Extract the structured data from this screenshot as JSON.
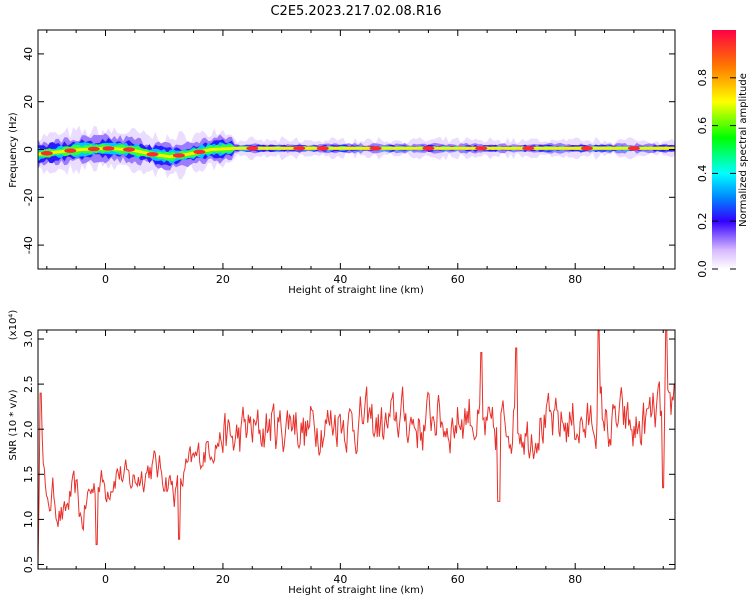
{
  "title": "C2E5.2023.217.02.08.R16",
  "chart_data": [
    {
      "type": "heatmap",
      "xlabel": "Height of straight line (km)",
      "ylabel": "Frequency (Hz)",
      "xlim": [
        -11.5,
        97
      ],
      "ylim": [
        -50,
        50
      ],
      "x_ticks": [
        0,
        20,
        40,
        60,
        80
      ],
      "y_ticks": [
        -40,
        -20,
        0,
        20,
        40
      ],
      "colorbar": {
        "label": "Normalized spectral amplitude",
        "range": [
          0,
          1
        ],
        "ticks": [
          "0.0",
          "0.2",
          "0.4",
          "0.6",
          "0.8"
        ]
      },
      "band_center_hz": [
        [
          -11.5,
          -2
        ],
        [
          -8,
          -1
        ],
        [
          -4,
          0
        ],
        [
          0,
          0.5
        ],
        [
          4,
          0
        ],
        [
          8,
          -2
        ],
        [
          11,
          -3
        ],
        [
          14,
          -2
        ],
        [
          18,
          0
        ],
        [
          22,
          0.5
        ],
        [
          40,
          0.5
        ],
        [
          97,
          0.5
        ]
      ],
      "peaks": [
        [
          -10,
          0.9
        ],
        [
          -6,
          0.9
        ],
        [
          -2,
          0.9
        ],
        [
          0.5,
          0.9
        ],
        [
          4,
          0.85
        ],
        [
          8,
          0.8
        ],
        [
          12.5,
          0.85
        ],
        [
          16,
          0.85
        ],
        [
          25,
          0.9
        ],
        [
          33,
          0.9
        ],
        [
          37,
          0.9
        ],
        [
          46,
          0.95
        ],
        [
          55,
          0.95
        ],
        [
          64,
          0.9
        ],
        [
          72,
          0.9
        ],
        [
          82,
          0.9
        ],
        [
          90,
          0.9
        ]
      ]
    },
    {
      "type": "line",
      "xlabel": "Height of straight line (km)",
      "ylabel": "SNR (10 * v/v)",
      "y_exponent_label": "(x10⁴)",
      "xlim": [
        -11.5,
        97
      ],
      "ylim": [
        0.45,
        3.1
      ],
      "x_ticks": [
        0,
        20,
        40,
        60,
        80
      ],
      "y_ticks": [
        "0.5",
        "1.0",
        "1.5",
        "2.0",
        "2.5",
        "3.0"
      ],
      "series": [
        {
          "color": "#e8302a",
          "x_start": -11.5,
          "x_end": 97,
          "anchors": [
            [
              -11.5,
              0.6
            ],
            [
              -11,
              2.4
            ],
            [
              -10,
              1.05
            ],
            [
              -9,
              1.3
            ],
            [
              -8,
              1.1
            ],
            [
              -7,
              1.0
            ],
            [
              -6,
              1.25
            ],
            [
              -5,
              1.3
            ],
            [
              -4,
              0.95
            ],
            [
              -3,
              1.25
            ],
            [
              -2,
              1.35
            ],
            [
              -1,
              1.45
            ],
            [
              0,
              1.35
            ],
            [
              2,
              1.55
            ],
            [
              4,
              1.4
            ],
            [
              6,
              1.5
            ],
            [
              8,
              1.6
            ],
            [
              10,
              1.5
            ],
            [
              12,
              1.3
            ],
            [
              14,
              1.55
            ],
            [
              16,
              1.7
            ],
            [
              18,
              1.85
            ],
            [
              20,
              1.9
            ],
            [
              22,
              1.85
            ],
            [
              24,
              2.0
            ],
            [
              26,
              1.95
            ],
            [
              28,
              2.05
            ],
            [
              30,
              2.0
            ],
            [
              32,
              2.15
            ],
            [
              34,
              1.95
            ],
            [
              36,
              2.1
            ],
            [
              38,
              2.05
            ],
            [
              40,
              2.15
            ],
            [
              42,
              2.05
            ],
            [
              44,
              2.1
            ],
            [
              46,
              2.05
            ],
            [
              48,
              2.0
            ],
            [
              50,
              2.15
            ],
            [
              52,
              2.1
            ],
            [
              54,
              2.0
            ],
            [
              56,
              2.2
            ],
            [
              58,
              2.05
            ],
            [
              60,
              2.1
            ],
            [
              62,
              2.2
            ],
            [
              64,
              2.0
            ],
            [
              66,
              1.9
            ],
            [
              68,
              2.05
            ],
            [
              70,
              2.15
            ],
            [
              72,
              1.95
            ],
            [
              74,
              2.1
            ],
            [
              76,
              2.0
            ],
            [
              78,
              2.05
            ],
            [
              80,
              2.1
            ],
            [
              82,
              2.0
            ],
            [
              84,
              2.2
            ],
            [
              86,
              2.0
            ],
            [
              88,
              2.1
            ],
            [
              90,
              1.95
            ],
            [
              92,
              2.05
            ],
            [
              94,
              2.2
            ],
            [
              96,
              2.0
            ],
            [
              97,
              2.5
            ]
          ],
          "noise_amplitude": 0.28,
          "spikes": [
            [
              -11,
              2.4
            ],
            [
              -1.5,
              0.72
            ],
            [
              12.5,
              0.78
            ],
            [
              64,
              2.85
            ],
            [
              67,
              1.2
            ],
            [
              70,
              2.9
            ],
            [
              84,
              3.1
            ],
            [
              95.5,
              3.1
            ],
            [
              95,
              1.35
            ]
          ]
        }
      ]
    }
  ]
}
